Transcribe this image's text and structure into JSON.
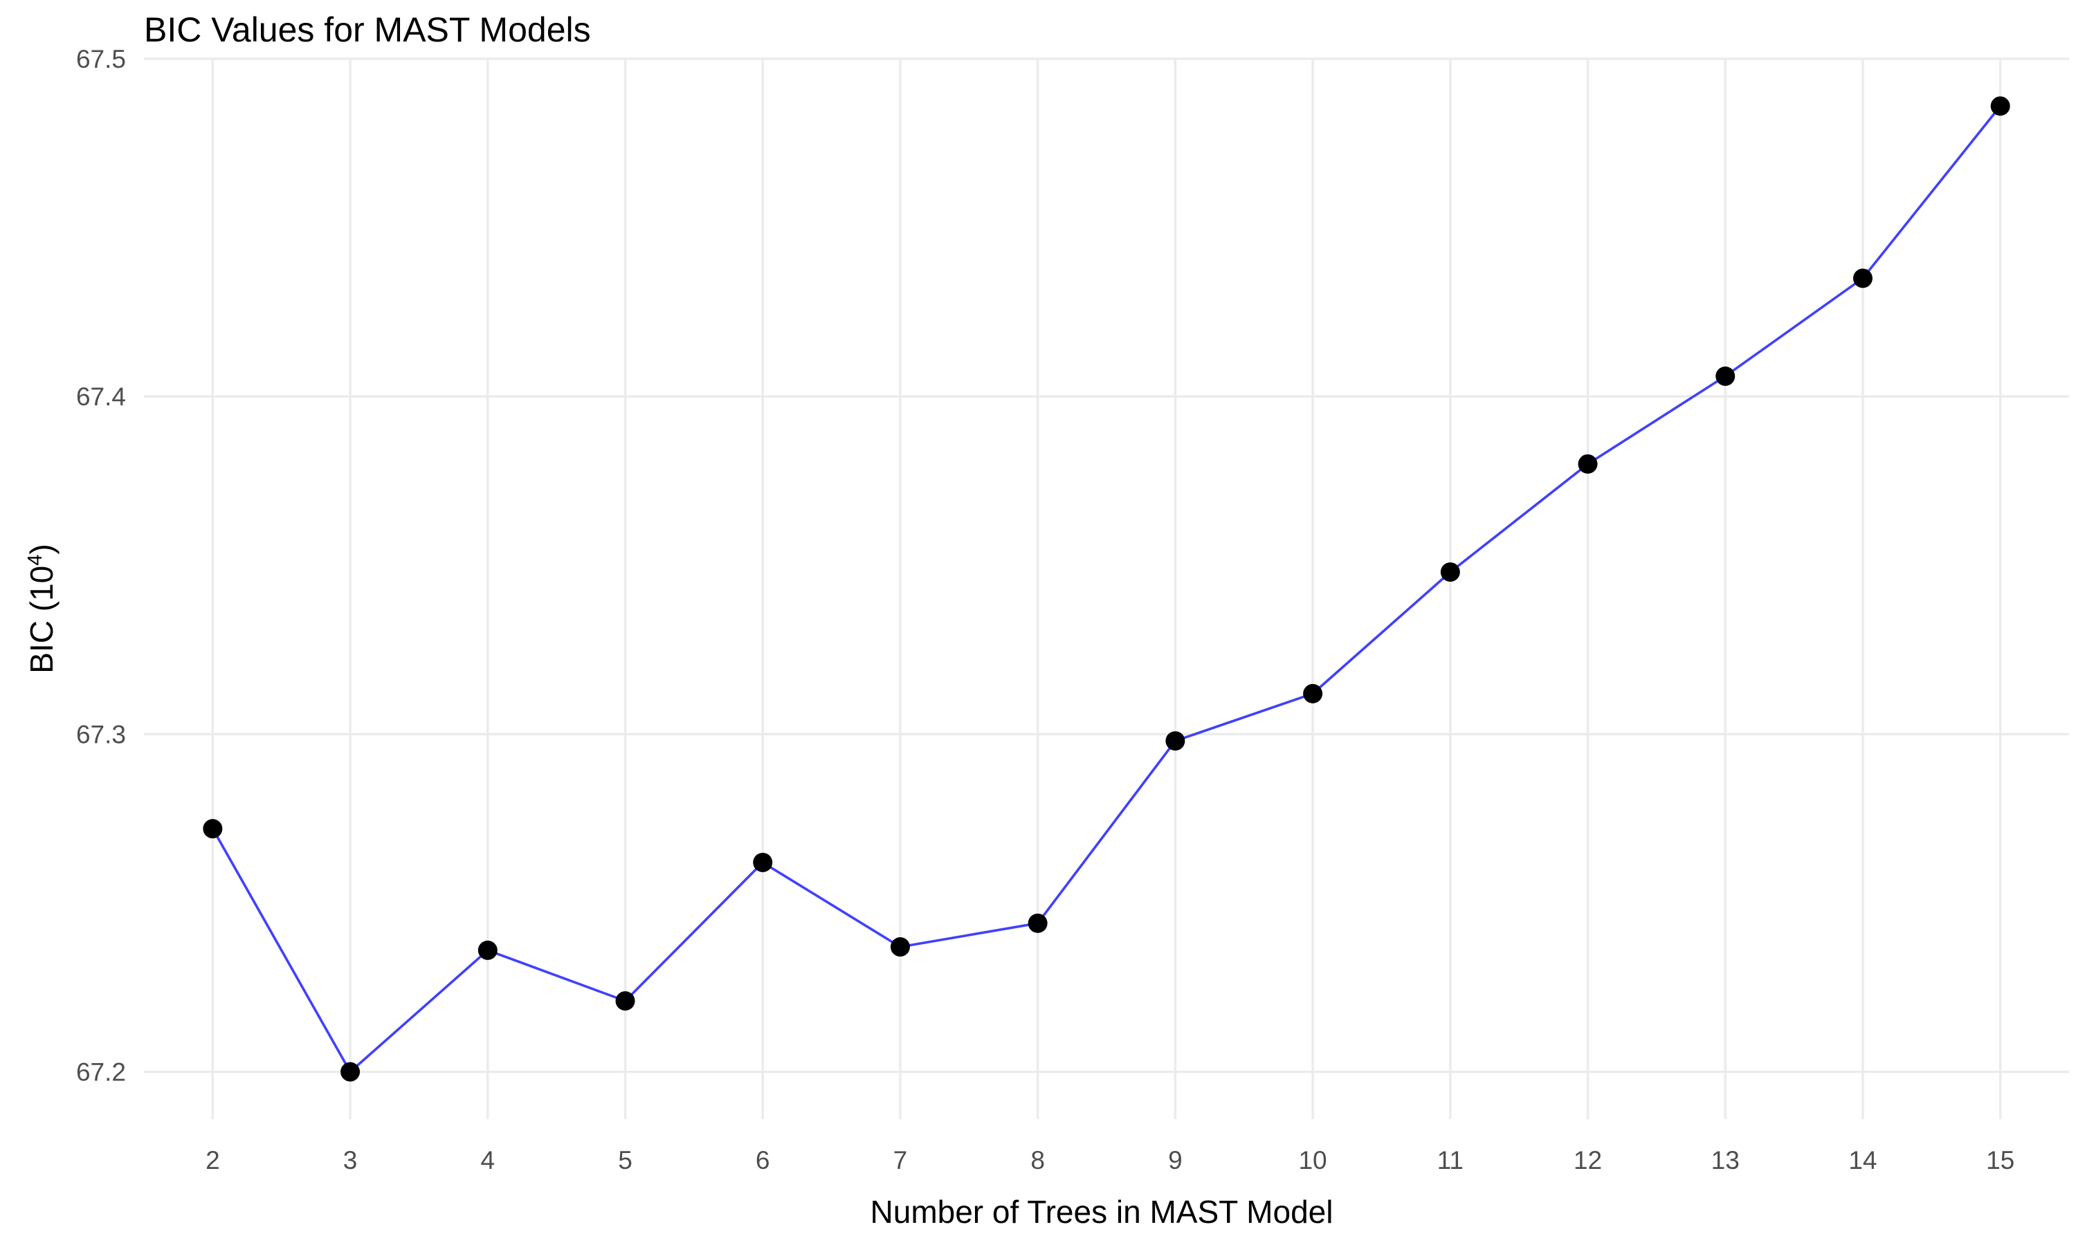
{
  "chart_data": {
    "type": "line",
    "title": "BIC Values for MAST Models",
    "xlabel": "Number of Trees in MAST Model",
    "ylabel": {
      "base": "BIC (10",
      "exponent": "4",
      "suffix": ")"
    },
    "x": [
      2,
      3,
      4,
      5,
      6,
      7,
      8,
      9,
      10,
      11,
      12,
      13,
      14,
      15
    ],
    "series": [
      {
        "values": [
          67.272,
          67.2,
          67.236,
          67.221,
          67.262,
          67.237,
          67.244,
          67.298,
          67.312,
          67.348,
          67.38,
          67.406,
          67.435,
          67.486
        ],
        "line_color": "#4040ff",
        "point_color": "#000000"
      }
    ],
    "xticks": [
      "2",
      "3",
      "4",
      "5",
      "6",
      "7",
      "8",
      "9",
      "10",
      "11",
      "12",
      "13",
      "14",
      "15"
    ],
    "yticks": [
      "67.2",
      "67.3",
      "67.4",
      "67.5"
    ],
    "ytick_values": [
      67.2,
      67.3,
      67.4,
      67.5
    ],
    "xlim": [
      1.5,
      15.5
    ],
    "ylim": [
      67.186,
      67.5
    ],
    "grid": true,
    "legend": "none"
  }
}
